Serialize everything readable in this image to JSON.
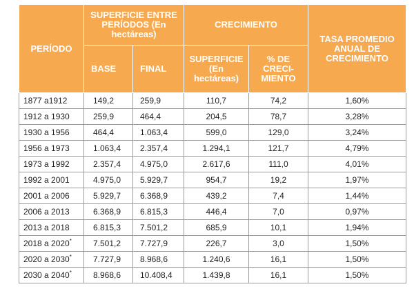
{
  "header": {
    "periodo": "PERÍODO",
    "superficie_group": "SUPERFICIE ENTRE PERÍODOS (En hectáreas)",
    "crecimiento_group": "CRECIMIENTO",
    "tasa": "TASA PROMEDIO ANUAL DE CRECIMIENTO",
    "base": "BASE",
    "final": "FINAL",
    "superficie": "SUPERFICIE (En hectáreas)",
    "pct": "% DE CRECI-MIENTO"
  },
  "rows": [
    {
      "period": "1877 a1912",
      "base": "149,2",
      "final": "259,9",
      "sup": "110,7",
      "pct": "74,2",
      "tasa": "1,60%"
    },
    {
      "period": "1912 a 1930",
      "base": "259,9",
      "final": "464,4",
      "sup": "204,5",
      "pct": "78,7",
      "tasa": "3,28%"
    },
    {
      "period": "1930 a 1956",
      "base": "464,4",
      "final": "1.063,4",
      "sup": "599,0",
      "pct": "129,0",
      "tasa": "3,24%"
    },
    {
      "period": "1956 a 1973",
      "base": "1.063,4",
      "final": "2.357,4",
      "sup": "1.294,1",
      "pct": "121,7",
      "tasa": "4,79%"
    },
    {
      "period": "1973 a 1992",
      "base": "2.357,4",
      "final": "4.975,0",
      "sup": "2.617,6",
      "pct": "111,0",
      "tasa": "4,01%"
    },
    {
      "period": "1992 a 2001",
      "base": "4.975,0",
      "final": "5.929,7",
      "sup": "954,7",
      "pct": "19,2",
      "tasa": "1,97%"
    },
    {
      "period": "2001 a 2006",
      "base": "5.929,7",
      "final": "6.368,9",
      "sup": "439,2",
      "pct": "7,4",
      "tasa": "1,44%"
    },
    {
      "period": "2006 a 2013",
      "base": "6.368,9",
      "final": "6.815,3",
      "sup": "446,4",
      "pct": "7,0",
      "tasa": "0,97%"
    },
    {
      "period": "2013 a 2018",
      "base": "6.815,3",
      "final": "7.501,2",
      "sup": "685,9",
      "pct": "10,1",
      "tasa": "1,94%"
    },
    {
      "period": "2018 a 2020*",
      "base": "7.501,2",
      "final": "7.727,9",
      "sup": "226,7",
      "pct": "3,0",
      "tasa": "1,50%"
    },
    {
      "period": "2020 a 2030*",
      "base": "7.727,9",
      "final": "8.968,6",
      "sup": "1.240,6",
      "pct": "16,1",
      "tasa": "1,50%"
    },
    {
      "period": "2030 a 2040*",
      "base": "8.968,6",
      "final": "10.408,4",
      "sup": "1.439,8",
      "pct": "16,1",
      "tasa": "1,50%"
    }
  ]
}
